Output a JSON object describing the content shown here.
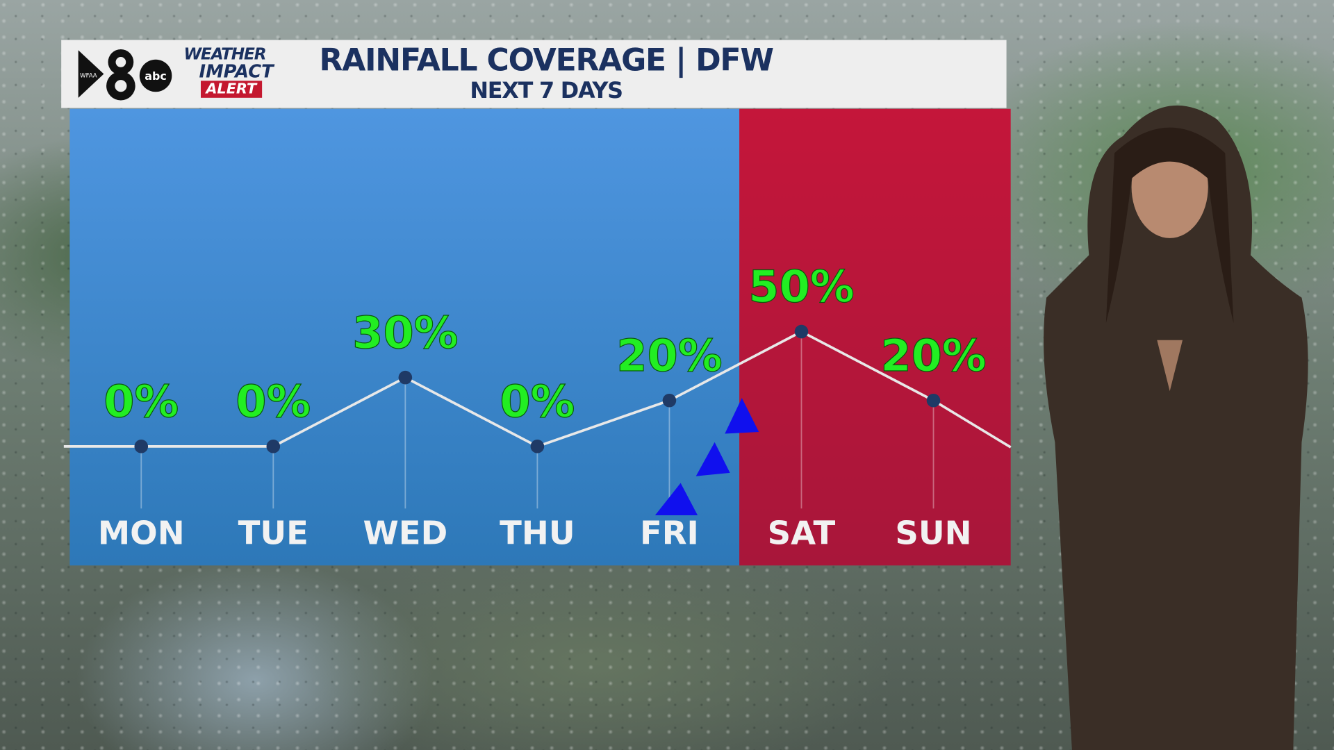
{
  "header": {
    "station": "WFAA",
    "network": "abc",
    "channel": "8",
    "brand_line1": "WEATHER",
    "brand_line2": "IMPACT",
    "brand_line3": "ALERT",
    "title": "RAINFALL COVERAGE | DFW",
    "subtitle": "NEXT 7 DAYS"
  },
  "colors": {
    "weekday_panel": "#3a86c8",
    "weekend_panel": "#b8163a",
    "value_label": "#22ee22",
    "title": "#1b3160",
    "line": "#e8e8e8",
    "point": "#1f3a66",
    "front": "#1010ee"
  },
  "chart_data": {
    "type": "line",
    "title": "RAINFALL COVERAGE | DFW",
    "subtitle": "NEXT 7 DAYS",
    "categories": [
      "MON",
      "TUE",
      "WED",
      "THU",
      "FRI",
      "SAT",
      "SUN"
    ],
    "values": [
      0,
      0,
      30,
      0,
      20,
      50,
      20
    ],
    "labels": [
      "0%",
      "0%",
      "30%",
      "0%",
      "20%",
      "50%",
      "20%"
    ],
    "ylim": [
      0,
      100
    ],
    "weekend_highlight": [
      "SAT",
      "SUN"
    ],
    "annotation": "cold front"
  }
}
